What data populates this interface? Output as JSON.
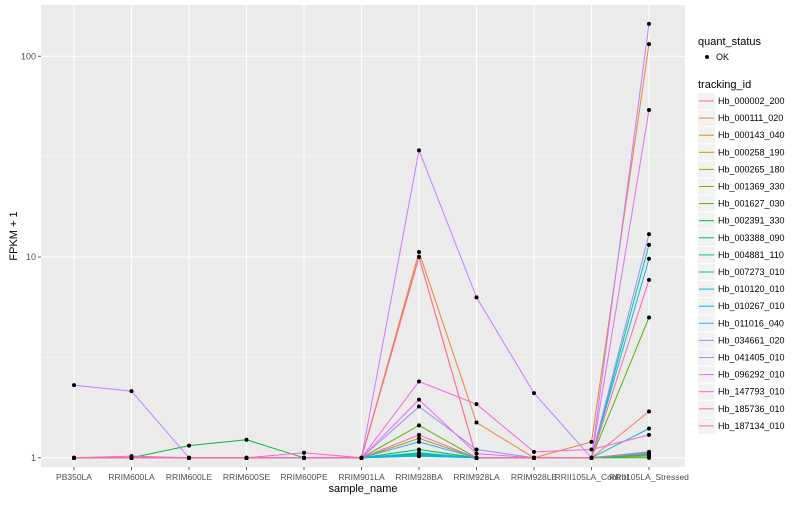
{
  "chart_data": {
    "type": "line",
    "title": "",
    "xlabel": "sample_name",
    "ylabel": "FPKM + 1",
    "yscale": "log10",
    "ylim": [
      0.9,
      180
    ],
    "yticks": [
      1,
      10,
      100
    ],
    "ytick_labels": [
      "1",
      "10",
      "100"
    ],
    "grid": true,
    "legend_position": "right",
    "categories": [
      "PB350LA",
      "RRIM600LA",
      "RRIM600LE",
      "RRIM600SE",
      "RRIM600PE",
      "RRIM901LA",
      "RRIM928BA",
      "RRIM928LA",
      "RRIM928LE",
      "RRII105LA_Control",
      "RRII105LA_Stressed"
    ],
    "quant_status_legend": {
      "title": "quant_status",
      "entries": [
        "OK"
      ]
    },
    "tracking_legend_title": "tracking_id",
    "series": [
      {
        "name": "Hb_000002_200",
        "color": "#F8766D",
        "values": [
          1,
          1,
          1,
          1,
          1,
          1,
          10.0,
          1,
          1,
          1,
          1.7
        ]
      },
      {
        "name": "Hb_000111_020",
        "color": "#EB8335",
        "values": [
          1,
          1,
          1,
          1,
          1,
          1,
          10.6,
          1.5,
          1,
          1.2,
          115
        ]
      },
      {
        "name": "Hb_000143_040",
        "color": "#DA8E00",
        "values": [
          1,
          1,
          1,
          1,
          1,
          1,
          1.02,
          1,
          1,
          1,
          1.02
        ]
      },
      {
        "name": "Hb_000258_190",
        "color": "#C49A00",
        "values": [
          1,
          1,
          1,
          1,
          1,
          1,
          1.05,
          1,
          1,
          1,
          1.05
        ]
      },
      {
        "name": "Hb_000265_180",
        "color": "#A9A400",
        "values": [
          1,
          1,
          1,
          1,
          1,
          1,
          1.03,
          1,
          1,
          1,
          1.03
        ]
      },
      {
        "name": "Hb_001369_330",
        "color": "#86AC00",
        "values": [
          1,
          1,
          1,
          1,
          1,
          1,
          1.25,
          1,
          1,
          1,
          1.03
        ]
      },
      {
        "name": "Hb_001627_030",
        "color": "#53B400",
        "values": [
          1,
          1,
          1,
          1,
          1,
          1,
          1.45,
          1,
          1,
          1,
          5.0
        ]
      },
      {
        "name": "Hb_002391_330",
        "color": "#00BA38",
        "values": [
          1,
          1,
          1.15,
          1.23,
          1,
          1,
          1.1,
          1,
          1,
          1,
          1.0
        ]
      },
      {
        "name": "Hb_003388_090",
        "color": "#00BE67",
        "values": [
          1,
          1,
          1,
          1,
          1,
          1,
          1.05,
          1,
          1,
          1,
          1.04
        ]
      },
      {
        "name": "Hb_004881_110",
        "color": "#00C094",
        "values": [
          1,
          1,
          1,
          1,
          1,
          1,
          1.03,
          1,
          1,
          1,
          11.5
        ]
      },
      {
        "name": "Hb_007273_010",
        "color": "#00BFBC",
        "values": [
          1,
          1,
          1,
          1,
          1,
          1,
          1.04,
          1,
          1,
          1,
          1.4
        ]
      },
      {
        "name": "Hb_010120_010",
        "color": "#00BCDE",
        "values": [
          1,
          1,
          1,
          1,
          1,
          1,
          1.06,
          1,
          1,
          1,
          9.8
        ]
      },
      {
        "name": "Hb_010267_010",
        "color": "#00B4F0",
        "values": [
          1,
          1,
          1,
          1,
          1,
          1,
          1.02,
          1,
          1,
          1,
          1.07
        ]
      },
      {
        "name": "Hb_011016_040",
        "color": "#35A2FF",
        "values": [
          1,
          1,
          1,
          1,
          1,
          1,
          1.2,
          1,
          1,
          1,
          1.05
        ]
      },
      {
        "name": "Hb_034661_020",
        "color": "#9C8DFF",
        "values": [
          1,
          1,
          1,
          1,
          1,
          1,
          1.8,
          1.1,
          1,
          1,
          13
        ]
      },
      {
        "name": "Hb_041405_010",
        "color": "#C77CFF",
        "values": [
          2.3,
          2.15,
          1,
          1,
          1,
          1,
          34,
          6.3,
          2.1,
          1,
          145
        ]
      },
      {
        "name": "Hb_096292_010",
        "color": "#E66CF5",
        "values": [
          1,
          1,
          1,
          1,
          1,
          1,
          1.95,
          1.05,
          1,
          1,
          54
        ]
      },
      {
        "name": "Hb_147793_010",
        "color": "#F862DE",
        "values": [
          1,
          1.02,
          1,
          1,
          1.06,
          1,
          2.4,
          1.85,
          1.07,
          1.1,
          1.3
        ]
      },
      {
        "name": "Hb_185736_010",
        "color": "#FF64B0",
        "values": [
          1,
          1,
          1,
          1,
          1,
          1,
          1.3,
          1,
          1,
          1,
          7.7
        ]
      },
      {
        "name": "Hb_187134_010",
        "color": "#FF6C91",
        "values": [
          1,
          1,
          1,
          1,
          1,
          1,
          10.0,
          1,
          1,
          1,
          1.06
        ]
      }
    ]
  }
}
